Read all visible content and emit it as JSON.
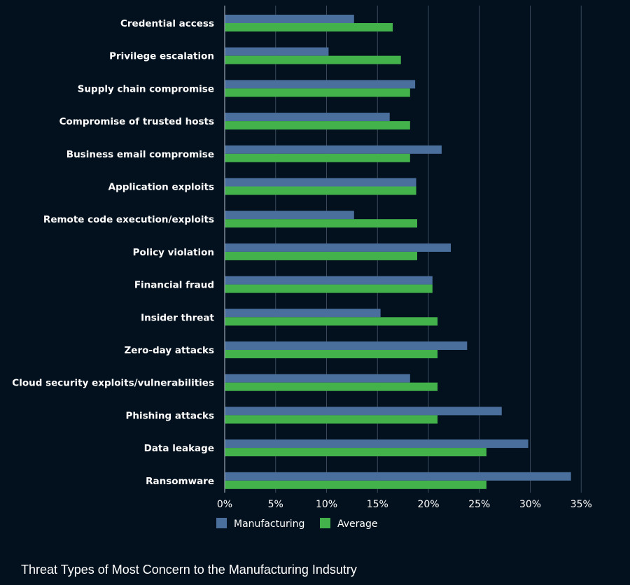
{
  "chart_data": {
    "type": "bar",
    "orientation": "horizontal",
    "title": "Threat Types of Most Concern to the Manufacturing Indsutry",
    "xlabel": "",
    "ylabel": "",
    "xlim": [
      0,
      35
    ],
    "x_ticks": [
      "0%",
      "5%",
      "10%",
      "15%",
      "20%",
      "25%",
      "30%",
      "35%"
    ],
    "x_tick_values": [
      0,
      5,
      10,
      15,
      20,
      25,
      30,
      35
    ],
    "grid": true,
    "legend_position": "bottom-center",
    "categories": [
      "Credential access",
      "Privilege escalation",
      "Supply chain compromise",
      "Compromise of trusted hosts",
      "Business email compromise",
      "Application exploits",
      "Remote code execution/exploits",
      "Policy violation",
      "Financial fraud",
      "Insider threat",
      "Zero-day attacks",
      "Cloud security exploits/vulnerabilities",
      "Phishing attacks",
      "Data leakage",
      "Ransomware"
    ],
    "series": [
      {
        "name": "Manufacturing",
        "color": "#4a6f9c",
        "values": [
          12.7,
          10.2,
          18.7,
          16.2,
          21.3,
          18.8,
          12.7,
          22.2,
          20.4,
          15.3,
          23.8,
          18.2,
          27.2,
          29.8,
          34.0
        ]
      },
      {
        "name": "Average",
        "color": "#44b24b",
        "values": [
          16.5,
          17.3,
          18.2,
          18.2,
          18.2,
          18.8,
          18.9,
          18.9,
          20.4,
          20.9,
          20.9,
          20.9,
          20.9,
          25.7,
          25.7
        ]
      }
    ]
  }
}
